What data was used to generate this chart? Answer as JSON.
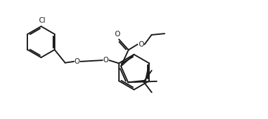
{
  "background_color": "#ffffff",
  "line_color": "#1a1a1a",
  "line_width": 1.4,
  "figsize": [
    3.92,
    1.74
  ],
  "dpi": 100,
  "xlim": [
    0,
    10.5
  ],
  "ylim": [
    0,
    4.7
  ]
}
